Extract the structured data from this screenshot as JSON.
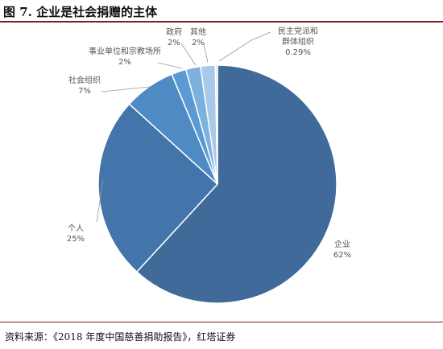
{
  "title": "图 7. 企业是社会捐赠的主体",
  "source": "资料来源：《2018 年度中国慈善捐助报告》，红塔证券",
  "colors": {
    "accent_rule": "#8b1a1a",
    "slice_outline": "#ffffff"
  },
  "chart_data": {
    "type": "pie",
    "slices": [
      {
        "category": "企业",
        "value_label": "62%",
        "value": 62,
        "color": "#3f6a99",
        "label_lines": [
          "企业",
          "62%"
        ]
      },
      {
        "category": "个人",
        "value_label": "25%",
        "value": 25,
        "color": "#4375ab",
        "label_lines": [
          "个人",
          "25%"
        ]
      },
      {
        "category": "社会组织",
        "value_label": "7%",
        "value": 7,
        "color": "#4f8ac4",
        "label_lines": [
          "社会组织",
          "7%"
        ]
      },
      {
        "category": "事业单位和宗教场所",
        "value_label": "2%",
        "value": 2,
        "color": "#5b9bd5",
        "label_lines": [
          "事业单位和宗教场所",
          "2%"
        ]
      },
      {
        "category": "政府",
        "value_label": "2%",
        "value": 2,
        "color": "#7eb0de",
        "label_lines": [
          "政府",
          "2%"
        ]
      },
      {
        "category": "其他",
        "value_label": "2%",
        "value": 2,
        "color": "#a9c9ea",
        "label_lines": [
          "其他",
          "2%"
        ]
      },
      {
        "category": "民主党派和群体组织",
        "value_label": "0.29%",
        "value": 0.29,
        "color": "#d3e3f5",
        "label_lines": [
          "民主党派和",
          "群体组织",
          "0.29%"
        ]
      }
    ]
  }
}
